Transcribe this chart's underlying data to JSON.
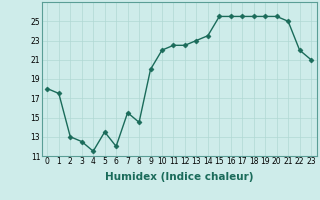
{
  "x": [
    0,
    1,
    2,
    3,
    4,
    5,
    6,
    7,
    8,
    9,
    10,
    11,
    12,
    13,
    14,
    15,
    16,
    17,
    18,
    19,
    20,
    21,
    22,
    23
  ],
  "y": [
    18.0,
    17.5,
    13.0,
    12.5,
    11.5,
    13.5,
    12.0,
    15.5,
    14.5,
    20.0,
    22.0,
    22.5,
    22.5,
    23.0,
    23.5,
    25.5,
    25.5,
    25.5,
    25.5,
    25.5,
    25.5,
    25.0,
    22.0,
    21.0
  ],
  "line_color": "#1a6b5a",
  "marker": "D",
  "marker_size": 2.5,
  "bg_color": "#ceecea",
  "grid_color": "#b0d8d4",
  "xlabel": "Humidex (Indice chaleur)",
  "ylim": [
    11,
    27
  ],
  "xlim": [
    -0.5,
    23.5
  ],
  "yticks": [
    11,
    13,
    15,
    17,
    19,
    21,
    23,
    25
  ],
  "xticks": [
    0,
    1,
    2,
    3,
    4,
    5,
    6,
    7,
    8,
    9,
    10,
    11,
    12,
    13,
    14,
    15,
    16,
    17,
    18,
    19,
    20,
    21,
    22,
    23
  ],
  "tick_label_fontsize": 5.5,
  "xlabel_fontsize": 7.5,
  "line_width": 1.0
}
